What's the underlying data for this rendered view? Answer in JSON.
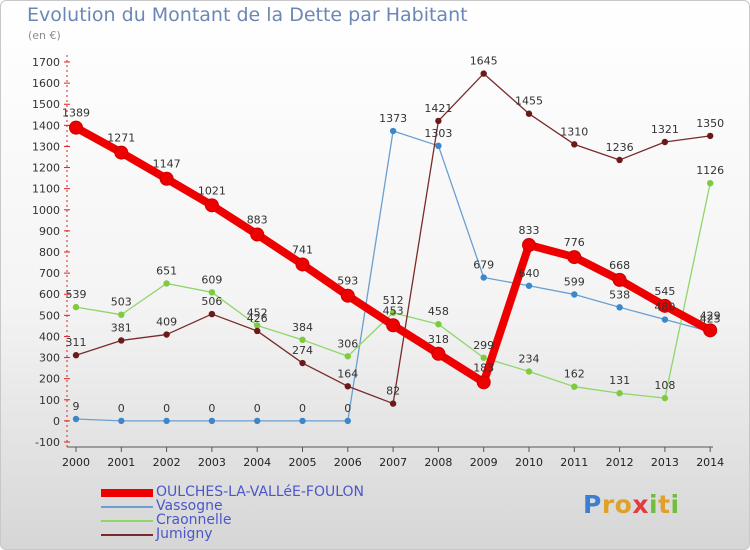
{
  "header": {
    "title": "Evolution du Montant de la Dette par Habitant",
    "unit": "(en €)"
  },
  "logo": {
    "text": "Proxiti",
    "letter_colors": [
      "#3a7fd0",
      "#e0a12a",
      "#e0a12a",
      "#e23c3c",
      "#6fbf3c",
      "#e0a12a",
      "#6fbf3c"
    ]
  },
  "chart_data": {
    "type": "line",
    "title": "Evolution du Montant de la Dette par Habitant",
    "subtitle": "(en €)",
    "xlabel": "",
    "ylabel": "",
    "x": [
      "2000",
      "2001",
      "2002",
      "2003",
      "2004",
      "2005",
      "2006",
      "2007",
      "2008",
      "2009",
      "2010",
      "2011",
      "2012",
      "2013",
      "2014"
    ],
    "ylim": [
      -100,
      1700
    ],
    "yticks": [
      -100,
      0,
      100,
      200,
      300,
      400,
      500,
      600,
      700,
      800,
      900,
      1000,
      1100,
      1200,
      1300,
      1400,
      1500,
      1600,
      1700
    ],
    "grid": false,
    "legend_position": "bottom-left",
    "series": [
      {
        "name": "OULCHES-LA-VALLéE-FOULON",
        "color": "#ee0000",
        "emphasis": true,
        "values": [
          1389,
          1271,
          1147,
          1021,
          883,
          741,
          593,
          453,
          318,
          183,
          833,
          776,
          668,
          545,
          429
        ]
      },
      {
        "name": "Vassogne",
        "color": "#6a9fcf",
        "point_color": "#3d86c8",
        "emphasis": false,
        "values": [
          9,
          0,
          0,
          0,
          0,
          0,
          0,
          1373,
          1303,
          679,
          640,
          599,
          538,
          480,
          423
        ]
      },
      {
        "name": "Craonnelle",
        "color": "#8fd66a",
        "point_color": "#7ecb3f",
        "emphasis": false,
        "values": [
          539,
          503,
          651,
          609,
          452,
          384,
          306,
          512,
          458,
          299,
          234,
          162,
          131,
          108,
          1126
        ]
      },
      {
        "name": "Jumigny",
        "color": "#7a2a2a",
        "point_color": "#6b1a1a",
        "emphasis": false,
        "values": [
          311,
          381,
          409,
          506,
          426,
          274,
          164,
          82,
          1421,
          1645,
          1455,
          1310,
          1236,
          1321,
          1350
        ]
      }
    ]
  }
}
